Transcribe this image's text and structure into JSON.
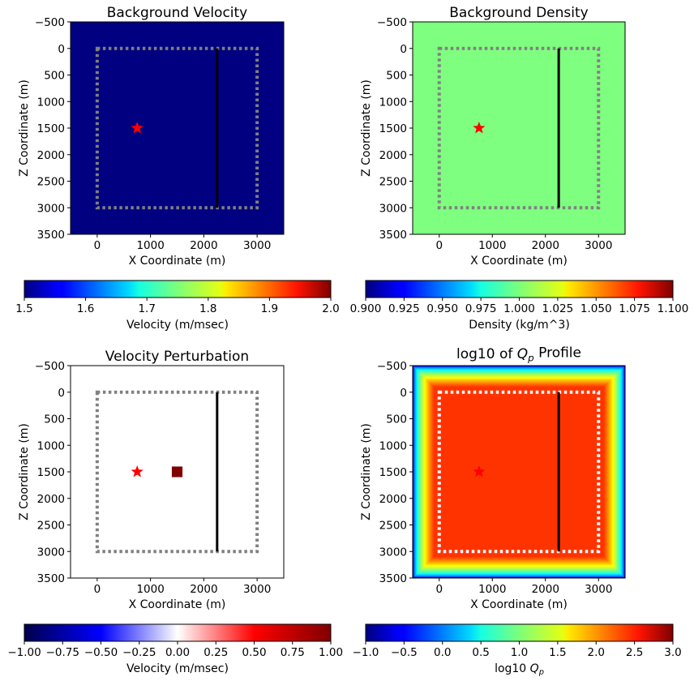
{
  "chart_data": [
    {
      "type": "heatmap",
      "title": "Background Velocity",
      "xlabel": "X Coordinate (m)",
      "ylabel": "Z Coordinate (m)",
      "xlim": [
        -500,
        3500
      ],
      "ylim": [
        3500,
        -500
      ],
      "xticks": [
        "0",
        "1000",
        "2000",
        "3000"
      ],
      "yticks": [
        "−500",
        "0",
        "500",
        "1000",
        "1500",
        "2000",
        "2500",
        "3000",
        "3500"
      ],
      "field": "uniform",
      "value": 1.5,
      "colormap": "jet",
      "colorbar": {
        "label": "Velocity (m/msec)",
        "range": [
          1.5,
          2.0
        ],
        "ticks": [
          "1.5",
          "1.6",
          "1.7",
          "1.8",
          "1.9",
          "2.0"
        ]
      },
      "dotted_box": {
        "x": [
          0,
          3000
        ],
        "z": [
          0,
          3000
        ],
        "color": "#808080"
      },
      "receiver_line": {
        "x": 2250,
        "z": [
          0,
          3000
        ]
      },
      "source_star": {
        "x": 750,
        "z": 1500,
        "color": "#ff0000"
      }
    },
    {
      "type": "heatmap",
      "title": "Background Density",
      "xlabel": "X Coordinate (m)",
      "ylabel": "Z Coordinate (m)",
      "xlim": [
        -500,
        3500
      ],
      "ylim": [
        3500,
        -500
      ],
      "xticks": [
        "0",
        "1000",
        "2000",
        "3000"
      ],
      "yticks": [
        "−500",
        "0",
        "500",
        "1000",
        "1500",
        "2000",
        "2500",
        "3000",
        "3500"
      ],
      "field": "uniform",
      "value": 1.0,
      "colormap": "jet",
      "colorbar": {
        "label": "Density (kg/m^3)",
        "range": [
          0.9,
          1.1
        ],
        "ticks": [
          "0.900",
          "0.925",
          "0.950",
          "0.975",
          "1.000",
          "1.025",
          "1.050",
          "1.075",
          "1.100"
        ]
      },
      "dotted_box": {
        "x": [
          0,
          3000
        ],
        "z": [
          0,
          3000
        ],
        "color": "#808080"
      },
      "receiver_line": {
        "x": 2250,
        "z": [
          0,
          3000
        ]
      },
      "source_star": {
        "x": 750,
        "z": 1500,
        "color": "#ff0000"
      }
    },
    {
      "type": "heatmap",
      "title": "Velocity Perturbation",
      "xlabel": "X Coordinate (m)",
      "ylabel": "Z Coordinate (m)",
      "xlim": [
        -500,
        3500
      ],
      "ylim": [
        3500,
        -500
      ],
      "xticks": [
        "0",
        "1000",
        "2000",
        "3000"
      ],
      "yticks": [
        "−500",
        "0",
        "500",
        "1000",
        "1500",
        "2000",
        "2500",
        "3000",
        "3500"
      ],
      "field": "uniform",
      "value": 0.0,
      "colormap": "seismic",
      "colorbar": {
        "label": "Velocity (m/msec)",
        "range": [
          -1.0,
          1.0
        ],
        "ticks": [
          "−1.00",
          "−0.75",
          "−0.50",
          "−0.25",
          "0.00",
          "0.25",
          "0.50",
          "0.75",
          "1.00"
        ]
      },
      "perturbation": {
        "x": [
          1400,
          1600
        ],
        "z": [
          1400,
          1600
        ],
        "value": 1.0
      },
      "dotted_box": {
        "x": [
          0,
          3000
        ],
        "z": [
          0,
          3000
        ],
        "color": "#808080"
      },
      "receiver_line": {
        "x": 2250,
        "z": [
          0,
          3000
        ]
      },
      "source_star": {
        "x": 750,
        "z": 1500,
        "color": "#ff0000"
      }
    },
    {
      "type": "heatmap",
      "title": "log10 of Q_p Profile",
      "xlabel": "X Coordinate (m)",
      "ylabel": "Z Coordinate (m)",
      "xlim": [
        -500,
        3500
      ],
      "ylim": [
        3500,
        -500
      ],
      "xticks": [
        "0",
        "1000",
        "2000",
        "3000"
      ],
      "yticks": [
        "−500",
        "0",
        "500",
        "1000",
        "1500",
        "2000",
        "2500",
        "3000",
        "3500"
      ],
      "field": "absorbing_boundary",
      "interior_value": 2.3,
      "edge_value": -0.9,
      "colormap": "jet",
      "colorbar": {
        "label": "log10 Q_p",
        "range": [
          -1.0,
          3.0
        ],
        "ticks": [
          "−1.0",
          "−0.5",
          "0.0",
          "0.5",
          "1.0",
          "1.5",
          "2.0",
          "2.5",
          "3.0"
        ]
      },
      "dotted_box": {
        "x": [
          0,
          3000
        ],
        "z": [
          0,
          3000
        ],
        "color": "#ffffff"
      },
      "receiver_line": {
        "x": 2250,
        "z": [
          0,
          3000
        ]
      },
      "source_star": {
        "x": 750,
        "z": 1500,
        "color": "#ff0000"
      }
    }
  ]
}
